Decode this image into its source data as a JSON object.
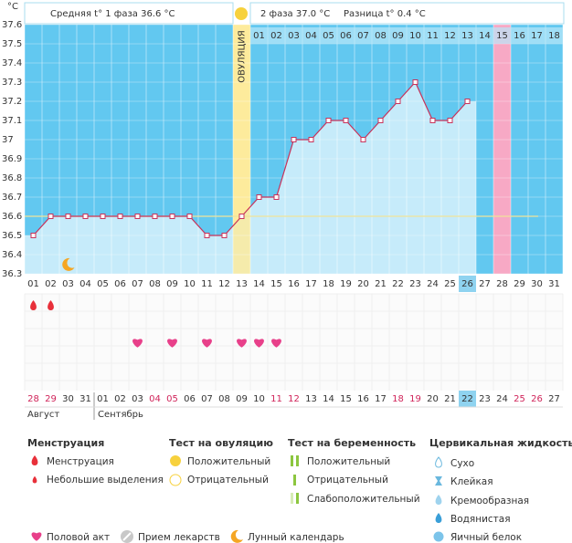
{
  "header": {
    "phase1": "Средняя t° 1 фаза 36.6 °C",
    "phase2": "2 фаза 37.0 °C",
    "difference": "Разница t° 0.4 °C"
  },
  "chart": {
    "unit": "°C",
    "ovulation_label": "ОВУЛЯЦИЯ",
    "ovulation_index": 12,
    "ylim": [
      36.3,
      37.6
    ],
    "yticks": [
      36.3,
      36.4,
      36.5,
      36.6,
      36.7,
      36.8,
      36.9,
      37,
      37.1,
      37.2,
      37.3,
      37.4,
      37.5,
      37.6
    ],
    "coverline": 36.6,
    "day_labels": [
      "01",
      "02",
      "03",
      "04",
      "05",
      "06",
      "07",
      "08",
      "09",
      "10",
      "11",
      "12",
      "13",
      "14",
      "15",
      "16",
      "17",
      "18",
      "19",
      "20",
      "21",
      "22",
      "23",
      "24",
      "25",
      "26",
      "27",
      "28",
      "29",
      "30",
      "31"
    ],
    "cycle_days": [
      null,
      null,
      null,
      null,
      null,
      null,
      null,
      null,
      null,
      null,
      null,
      null,
      null,
      "01",
      "02",
      "03",
      "04",
      "05",
      "06",
      "07",
      "08",
      "09",
      "10",
      "11",
      "12",
      "13",
      "14",
      "15",
      "16",
      "17",
      "18"
    ],
    "temperatures": [
      36.5,
      36.6,
      36.6,
      36.6,
      36.6,
      36.6,
      36.6,
      36.6,
      36.6,
      36.6,
      36.5,
      36.5,
      36.6,
      36.7,
      36.7,
      37.0,
      37.0,
      37.1,
      37.1,
      37.0,
      37.1,
      37.2,
      37.3,
      37.1,
      37.1,
      37.2,
      null,
      null,
      null,
      null,
      null
    ],
    "today_index": 25,
    "expected_period_index": 27,
    "line_color": "#c8325a",
    "background_color": "#62c8f0",
    "area_color": "#c6ebfa",
    "menstruation": [
      0,
      1
    ],
    "intercourse": [
      6,
      8,
      10,
      12,
      13,
      14
    ],
    "moon": [
      2
    ]
  },
  "calendar": {
    "dates": [
      "28",
      "29",
      "30",
      "31",
      "01",
      "02",
      "03",
      "04",
      "05",
      "06",
      "07",
      "08",
      "09",
      "10",
      "11",
      "12",
      "13",
      "14",
      "15",
      "16",
      "17",
      "18",
      "19",
      "20",
      "21",
      "22",
      "23",
      "24",
      "25",
      "26",
      "27"
    ],
    "weekend": [
      0,
      1,
      7,
      8,
      14,
      15,
      21,
      22,
      28,
      29
    ],
    "months": [
      "Август",
      "Сентябрь"
    ]
  },
  "legend": {
    "menstruation": {
      "title": "Менструация",
      "items": [
        "Менструация",
        "Небольшие выделения"
      ]
    },
    "ovulation_test": {
      "title": "Тест на овуляцию",
      "items": [
        "Положительный",
        "Отрицательный"
      ]
    },
    "pregnancy_test": {
      "title": "Тест на беременность",
      "items": [
        "Положительный",
        "Отрицательный",
        "Слабоположительный"
      ]
    },
    "cervical_fluid": {
      "title": "Цервикальная жидкость",
      "items": [
        "Сухо",
        "Клейкая",
        "Кремообразная",
        "Водянистая",
        "Яичный белок"
      ]
    },
    "other": [
      "Половой акт",
      "Прием лекарств",
      "Лунный календарь"
    ]
  }
}
